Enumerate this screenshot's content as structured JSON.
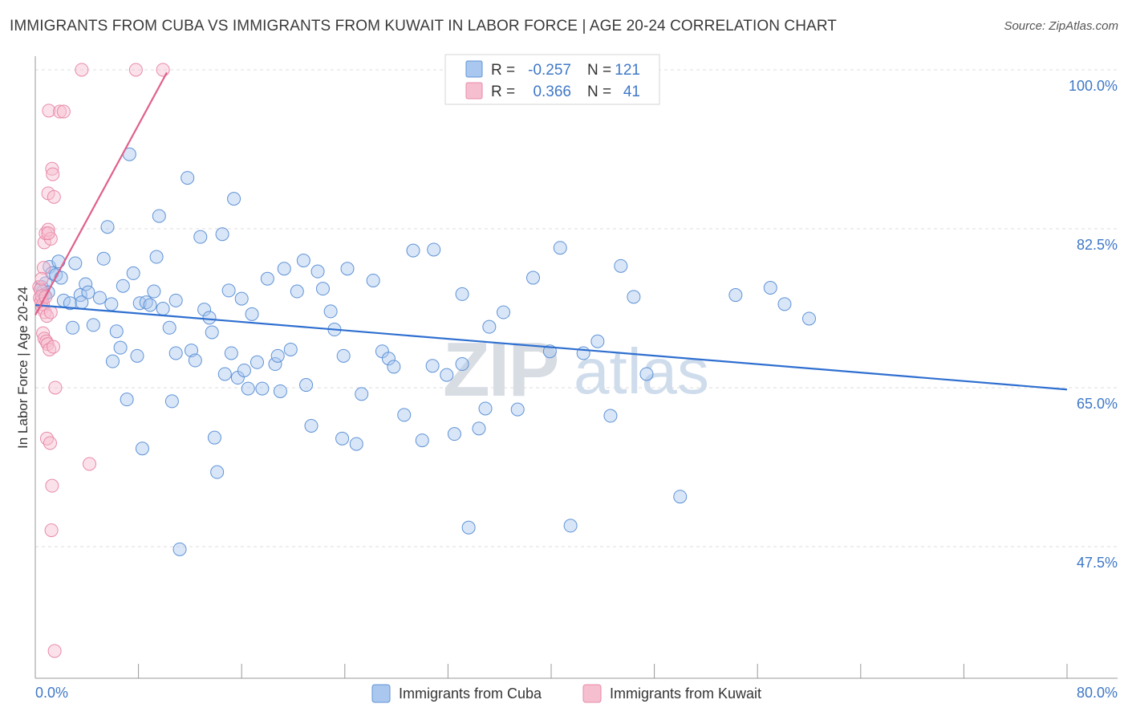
{
  "title": "IMMIGRANTS FROM CUBA VS IMMIGRANTS FROM KUWAIT IN LABOR FORCE | AGE 20-24 CORRELATION CHART",
  "source": "Source: ZipAtlas.com",
  "watermark": {
    "zip": "ZIP",
    "atlas": "atlas"
  },
  "colors": {
    "cuba_fill": "#aac8ef",
    "cuba_stroke": "#5f93d6",
    "cuba_line": "#2f6fd0",
    "kuwait_fill": "#f6bfd0",
    "kuwait_stroke": "#e98aa8",
    "kuwait_line": "#e0608a",
    "axis_text": "#3f78c8",
    "grid": "#dddddd"
  },
  "legend": {
    "rows": [
      {
        "r_label": "R =",
        "r_value": "-0.257",
        "n_label": "N =",
        "n_value": "121"
      },
      {
        "r_label": "R =",
        "r_value": "0.366",
        "n_label": "N =",
        "n_value": "41"
      }
    ]
  },
  "chart_data": {
    "type": "scatter",
    "title": "IMMIGRANTS FROM CUBA VS IMMIGRANTS FROM KUWAIT IN LABOR FORCE | AGE 20-24 CORRELATION CHART",
    "xlabel": "",
    "ylabel": "In Labor Force | Age 20-24",
    "xlim": [
      0,
      80
    ],
    "ylim": [
      33,
      101.5
    ],
    "x_tick_labels": [
      "0.0%",
      "80.0%"
    ],
    "y_ticks": [
      47.5,
      65.0,
      82.5,
      100.0
    ],
    "y_tick_labels": [
      "47.5%",
      "65.0%",
      "82.5%",
      "100.0%"
    ],
    "grid": true,
    "legend_position": "top-center",
    "series": [
      {
        "name": "Immigrants from Cuba",
        "r": -0.257,
        "n": 121,
        "trend": {
          "x": [
            0,
            80
          ],
          "y": [
            74.1,
            64.8
          ]
        },
        "points": [
          [
            0.5,
            76.1
          ],
          [
            0.6,
            75.6
          ],
          [
            0.7,
            75.2
          ],
          [
            0.8,
            76.5
          ],
          [
            1.0,
            75.5
          ],
          [
            1.1,
            78.3
          ],
          [
            1.3,
            77.6
          ],
          [
            1.6,
            77.4
          ],
          [
            1.8,
            78.9
          ],
          [
            2.0,
            77.1
          ],
          [
            2.2,
            74.6
          ],
          [
            2.7,
            74.3
          ],
          [
            2.9,
            71.6
          ],
          [
            3.1,
            78.7
          ],
          [
            3.5,
            75.2
          ],
          [
            3.6,
            74.4
          ],
          [
            3.9,
            76.4
          ],
          [
            4.1,
            75.5
          ],
          [
            4.5,
            71.9
          ],
          [
            5.0,
            74.9
          ],
          [
            5.3,
            79.2
          ],
          [
            5.6,
            82.7
          ],
          [
            5.9,
            74.2
          ],
          [
            6.0,
            67.9
          ],
          [
            6.3,
            71.2
          ],
          [
            6.6,
            69.4
          ],
          [
            6.8,
            76.2
          ],
          [
            7.1,
            63.7
          ],
          [
            7.3,
            90.7
          ],
          [
            7.6,
            77.6
          ],
          [
            7.9,
            68.5
          ],
          [
            8.1,
            74.3
          ],
          [
            8.3,
            58.3
          ],
          [
            8.6,
            74.4
          ],
          [
            8.9,
            74.1
          ],
          [
            9.2,
            75.6
          ],
          [
            9.4,
            79.4
          ],
          [
            9.6,
            83.9
          ],
          [
            9.9,
            73.7
          ],
          [
            10.4,
            71.6
          ],
          [
            10.6,
            63.5
          ],
          [
            10.9,
            68.8
          ],
          [
            10.9,
            74.6
          ],
          [
            11.2,
            47.2
          ],
          [
            11.8,
            88.1
          ],
          [
            12.1,
            69.1
          ],
          [
            12.4,
            68.0
          ],
          [
            12.8,
            81.6
          ],
          [
            13.1,
            73.6
          ],
          [
            13.5,
            72.7
          ],
          [
            13.7,
            71.1
          ],
          [
            13.9,
            59.5
          ],
          [
            14.1,
            55.7
          ],
          [
            14.5,
            81.9
          ],
          [
            14.7,
            66.5
          ],
          [
            15.0,
            75.7
          ],
          [
            15.2,
            68.8
          ],
          [
            15.4,
            85.8
          ],
          [
            15.7,
            66.1
          ],
          [
            16.0,
            74.8
          ],
          [
            16.2,
            66.9
          ],
          [
            16.5,
            64.9
          ],
          [
            16.8,
            73.1
          ],
          [
            17.2,
            67.8
          ],
          [
            17.6,
            64.9
          ],
          [
            18.0,
            77.0
          ],
          [
            18.6,
            67.6
          ],
          [
            18.8,
            68.5
          ],
          [
            19.0,
            64.6
          ],
          [
            19.3,
            78.1
          ],
          [
            19.8,
            69.2
          ],
          [
            20.3,
            75.6
          ],
          [
            20.8,
            79.0
          ],
          [
            21.0,
            65.3
          ],
          [
            21.4,
            60.8
          ],
          [
            21.9,
            77.8
          ],
          [
            22.3,
            75.9
          ],
          [
            22.9,
            73.4
          ],
          [
            23.2,
            71.4
          ],
          [
            23.8,
            59.4
          ],
          [
            23.9,
            68.5
          ],
          [
            24.2,
            78.1
          ],
          [
            24.9,
            58.8
          ],
          [
            25.3,
            64.3
          ],
          [
            26.2,
            76.8
          ],
          [
            26.9,
            69.0
          ],
          [
            27.4,
            68.2
          ],
          [
            27.8,
            67.3
          ],
          [
            28.6,
            62.0
          ],
          [
            29.3,
            80.1
          ],
          [
            30.0,
            59.2
          ],
          [
            30.8,
            67.4
          ],
          [
            30.9,
            80.2
          ],
          [
            31.9,
            66.4
          ],
          [
            32.5,
            59.9
          ],
          [
            33.1,
            67.6
          ],
          [
            33.1,
            75.3
          ],
          [
            33.6,
            49.6
          ],
          [
            34.4,
            60.5
          ],
          [
            34.9,
            62.7
          ],
          [
            35.2,
            71.7
          ],
          [
            36.3,
            73.3
          ],
          [
            37.4,
            62.6
          ],
          [
            38.6,
            77.1
          ],
          [
            39.9,
            69.0
          ],
          [
            40.7,
            80.4
          ],
          [
            41.5,
            49.8
          ],
          [
            42.5,
            68.8
          ],
          [
            43.6,
            70.1
          ],
          [
            44.6,
            61.9
          ],
          [
            45.4,
            78.4
          ],
          [
            46.4,
            75.0
          ],
          [
            47.4,
            66.5
          ],
          [
            50.0,
            53.0
          ],
          [
            54.3,
            75.2
          ],
          [
            57.0,
            76.0
          ],
          [
            58.1,
            74.2
          ],
          [
            60.0,
            72.6
          ]
        ]
      },
      {
        "name": "Immigrants from Kuwait",
        "r": 0.366,
        "n": 41,
        "trend": {
          "x": [
            0,
            10.2
          ],
          "y": [
            73.0,
            99.7
          ]
        },
        "points": [
          [
            0.3,
            76.1
          ],
          [
            0.35,
            74.9
          ],
          [
            0.4,
            75.8
          ],
          [
            0.45,
            74.5
          ],
          [
            0.5,
            75.1
          ],
          [
            0.55,
            73.8
          ],
          [
            0.6,
            74.2
          ],
          [
            0.6,
            71.0
          ],
          [
            0.65,
            78.2
          ],
          [
            0.7,
            70.4
          ],
          [
            0.7,
            81.0
          ],
          [
            0.75,
            73.3
          ],
          [
            0.8,
            82.0
          ],
          [
            0.8,
            75.0
          ],
          [
            0.85,
            70.1
          ],
          [
            0.9,
            72.9
          ],
          [
            0.9,
            59.4
          ],
          [
            0.95,
            69.8
          ],
          [
            1.0,
            86.4
          ],
          [
            1.0,
            82.4
          ],
          [
            1.05,
            95.5
          ],
          [
            1.1,
            69.2
          ],
          [
            1.15,
            58.9
          ],
          [
            1.2,
            81.4
          ],
          [
            1.2,
            73.3
          ],
          [
            1.25,
            49.3
          ],
          [
            1.3,
            89.1
          ],
          [
            1.3,
            54.2
          ],
          [
            1.35,
            88.5
          ],
          [
            1.4,
            69.5
          ],
          [
            1.45,
            86.0
          ],
          [
            1.5,
            36.0
          ],
          [
            1.55,
            65.0
          ],
          [
            1.9,
            95.4
          ],
          [
            2.2,
            95.4
          ],
          [
            4.2,
            56.6
          ],
          [
            3.6,
            100.0
          ],
          [
            7.8,
            100.0
          ],
          [
            9.9,
            100.0
          ],
          [
            1.0,
            82.0
          ],
          [
            0.5,
            77.0
          ]
        ]
      }
    ]
  }
}
